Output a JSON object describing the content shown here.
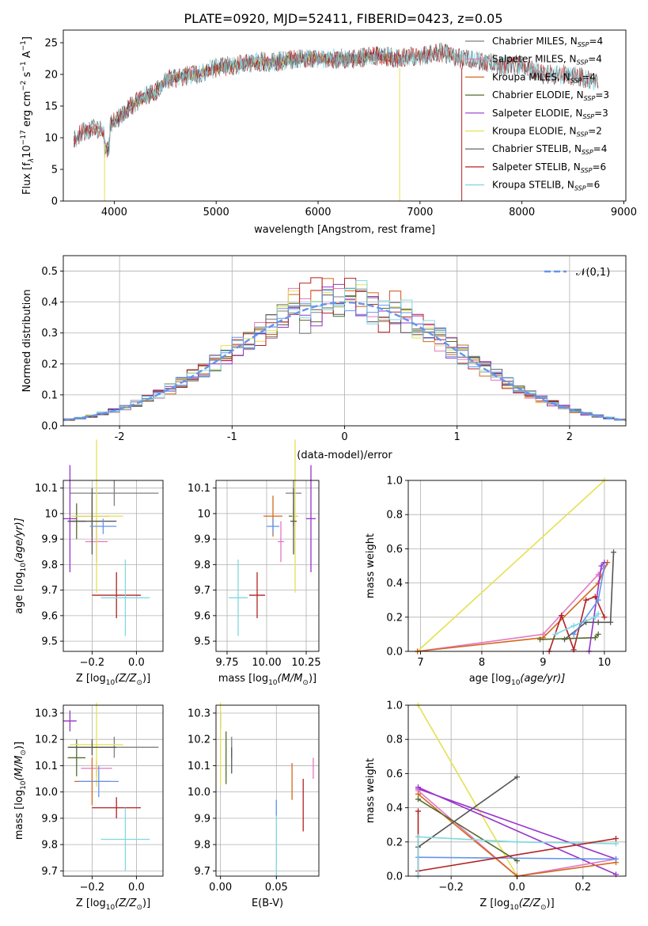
{
  "figure": {
    "title": "PLATE=0920, MJD=52411, FIBERID=0423, z=0.05"
  },
  "colors": {
    "chabrier_miles": "#7f7f7f",
    "salpeter_miles": "#e377c2",
    "kroupa_miles": "#d2691e",
    "chabrier_elodie": "#556b2f",
    "salpeter_elodie": "#9932cc",
    "kroupa_elodie": "#e6e050",
    "chabrier_stelib": "#555555",
    "salpeter_stelib": "#b22222",
    "kroupa_stelib": "#80d8e0",
    "normal": "#6495ed",
    "extra_blue": "#6495ed"
  },
  "chart_data": [
    {
      "id": "spectrum",
      "type": "line",
      "xlabel": "wavelength [Angstrom, rest frame]",
      "ylabel_parts": [
        "Flux [f",
        "λ",
        "10",
        "−17",
        " erg cm",
        "−2",
        " s",
        "−1",
        " A",
        "−1",
        "]"
      ],
      "xlim": [
        3500,
        9020
      ],
      "ylim": [
        0,
        27
      ],
      "xticks": [
        4000,
        5000,
        6000,
        7000,
        8000,
        9000
      ],
      "yticks": [
        0,
        5,
        10,
        15,
        20,
        25
      ],
      "grid": false,
      "legend_position": "top-right",
      "legend": [
        {
          "label": "Chabrier MILES, N",
          "sub": "SSP",
          "suffix": "=4",
          "color_key": "chabrier_miles"
        },
        {
          "label": "Salpeter MILES, N",
          "sub": "SSP",
          "suffix": "=4",
          "color_key": "salpeter_miles"
        },
        {
          "label": "Kroupa MILES, N",
          "sub": "SSP",
          "suffix": "=4",
          "color_key": "kroupa_miles"
        },
        {
          "label": "Chabrier ELODIE, N",
          "sub": "SSP",
          "suffix": "=3",
          "color_key": "chabrier_elodie"
        },
        {
          "label": "Salpeter ELODIE, N",
          "sub": "SSP",
          "suffix": "=3",
          "color_key": "salpeter_elodie"
        },
        {
          "label": "Kroupa ELODIE, N",
          "sub": "SSP",
          "suffix": "=2",
          "color_key": "kroupa_elodie"
        },
        {
          "label": "Chabrier STELIB, N",
          "sub": "SSP",
          "suffix": "=4",
          "color_key": "chabrier_stelib"
        },
        {
          "label": "Salpeter STELIB, N",
          "sub": "SSP",
          "suffix": "=6",
          "color_key": "salpeter_stelib"
        },
        {
          "label": "Kroupa STELIB, N",
          "sub": "SSP",
          "suffix": "=6",
          "color_key": "kroupa_stelib"
        }
      ],
      "continuum": {
        "wavelength": [
          3600,
          3700,
          3800,
          3900,
          4000,
          4100,
          4200,
          4300,
          4400,
          4500,
          4600,
          4800,
          5000,
          5200,
          5400,
          5600,
          5800,
          6000,
          6200,
          6400,
          6600,
          6800,
          7000,
          7200,
          7400,
          7600,
          7800,
          8000,
          8200,
          8400,
          8600,
          8700
        ],
        "flux": [
          9.5,
          11,
          11.5,
          11,
          12.5,
          14,
          15.5,
          16.5,
          17,
          19,
          19.5,
          20,
          21,
          21.5,
          22,
          22,
          22.5,
          22.5,
          22.5,
          22.5,
          23,
          22.5,
          23,
          23.5,
          22.5,
          22,
          21.5,
          21.5,
          20,
          20,
          19.5,
          19
        ]
      },
      "series_ranges": [
        {
          "color_key": "chabrier_miles",
          "range": [
            3600,
            7400
          ]
        },
        {
          "color_key": "salpeter_miles",
          "range": [
            3600,
            7400
          ]
        },
        {
          "color_key": "kroupa_miles",
          "range": [
            3600,
            7400
          ]
        },
        {
          "color_key": "chabrier_elodie",
          "range": [
            3900,
            6800
          ]
        },
        {
          "color_key": "salpeter_elodie",
          "range": [
            3900,
            6800
          ]
        },
        {
          "color_key": "kroupa_elodie",
          "range": [
            3900,
            6800
          ]
        },
        {
          "color_key": "chabrier_stelib",
          "range": [
            3600,
            8750
          ]
        },
        {
          "color_key": "salpeter_stelib",
          "range": [
            3600,
            8750
          ]
        },
        {
          "color_key": "kroupa_stelib",
          "range": [
            3600,
            8750
          ]
        }
      ]
    },
    {
      "id": "residuals",
      "type": "histogram",
      "xlabel": "(data-model)/error",
      "ylabel": "Normed distribution",
      "xlim": [
        -2.5,
        2.5
      ],
      "ylim": [
        0,
        0.55
      ],
      "xticks": [
        -2,
        -1,
        0,
        1,
        2
      ],
      "yticks": [
        0.0,
        0.1,
        0.2,
        0.3,
        0.4,
        0.5
      ],
      "grid": true,
      "legend_position": "top-right",
      "legend_label": "𝒩(0,1)",
      "bin_edges_start": -2.5,
      "bin_width": 0.1,
      "bins": 50
    },
    {
      "id": "age-vs-z",
      "type": "errorbar",
      "xlabel": "Z [log",
      "xlabel_sub": "10",
      "xlabel_rest": "(Z/Z",
      "xlabel_sun": "⊙",
      "xlabel_end": ")]",
      "ylabel": "age  [log",
      "ylabel_sub": "10",
      "ylabel_rest": "(age/yr)]",
      "xlim": [
        -0.33,
        0.12
      ],
      "ylim": [
        9.46,
        10.13
      ],
      "xticks": [
        -0.2,
        0.0
      ],
      "xtick_labels": [
        "−0.2",
        "0.0"
      ],
      "yticks": [
        9.5,
        9.6,
        9.7,
        9.8,
        9.9,
        10.0,
        10.1
      ],
      "grid": true,
      "points": [
        {
          "color_key": "chabrier_miles",
          "x": -0.1,
          "xerr": 0.2,
          "y": 10.08,
          "yerr": 0.05
        },
        {
          "color_key": "salpeter_miles",
          "x": -0.18,
          "xerr": 0.05,
          "y": 9.89,
          "yerr": 0.08
        },
        {
          "color_key": "kroupa_miles",
          "x": -0.2,
          "xerr": 0.08,
          "y": 9.99,
          "yerr": 0.08
        },
        {
          "color_key": "chabrier_elodie",
          "x": -0.27,
          "xerr": 0.04,
          "y": 9.97,
          "yerr": 0.07
        },
        {
          "color_key": "salpeter_elodie",
          "x": -0.3,
          "xerr": 0.03,
          "y": 9.98,
          "yerr": 0.21
        },
        {
          "color_key": "kroupa_elodie",
          "x": -0.18,
          "xerr": 0.12,
          "y": 9.99,
          "yerr": 0.3
        },
        {
          "color_key": "chabrier_stelib",
          "x": -0.2,
          "xerr": 0.11,
          "y": 9.97,
          "yerr": 0.13
        },
        {
          "color_key": "salpeter_stelib",
          "x": -0.09,
          "xerr": 0.11,
          "y": 9.68,
          "yerr": 0.09
        },
        {
          "color_key": "kroupa_stelib",
          "x": -0.05,
          "xerr": 0.11,
          "y": 9.67,
          "yerr": 0.15
        },
        {
          "color_key": "extra_blue",
          "x": -0.15,
          "xerr": 0.06,
          "y": 9.95,
          "yerr": 0.03
        }
      ]
    },
    {
      "id": "age-vs-mass",
      "type": "errorbar",
      "xlabel": "mass [log",
      "xlabel_sub": "10",
      "xlabel_rest": "(M/M",
      "xlabel_sun": "⊙",
      "xlabel_end": ")]",
      "xlim": [
        9.68,
        10.33
      ],
      "ylim": [
        9.46,
        10.13
      ],
      "xticks": [
        9.75,
        10.0,
        10.25
      ],
      "xtick_labels": [
        "9.75",
        "10.00",
        "10.25"
      ],
      "yticks": [
        9.5,
        9.6,
        9.7,
        9.8,
        9.9,
        10.0,
        10.1
      ],
      "grid": true,
      "points": [
        {
          "color_key": "chabrier_miles",
          "x": 10.17,
          "xerr": 0.05,
          "y": 10.08,
          "yerr": 0.05
        },
        {
          "color_key": "salpeter_miles",
          "x": 10.09,
          "xerr": 0.02,
          "y": 9.89,
          "yerr": 0.08
        },
        {
          "color_key": "kroupa_miles",
          "x": 10.04,
          "xerr": 0.06,
          "y": 9.99,
          "yerr": 0.08
        },
        {
          "color_key": "chabrier_elodie",
          "x": 10.17,
          "xerr": 0.03,
          "y": 9.99,
          "yerr": 0.04
        },
        {
          "color_key": "salpeter_elodie",
          "x": 10.28,
          "xerr": 0.03,
          "y": 9.98,
          "yerr": 0.21
        },
        {
          "color_key": "kroupa_elodie",
          "x": 10.18,
          "xerr": 0.02,
          "y": 9.99,
          "yerr": 0.3
        },
        {
          "color_key": "chabrier_stelib",
          "x": 10.17,
          "xerr": 0.02,
          "y": 9.97,
          "yerr": 0.13
        },
        {
          "color_key": "salpeter_stelib",
          "x": 9.94,
          "xerr": 0.05,
          "y": 9.68,
          "yerr": 0.09
        },
        {
          "color_key": "kroupa_stelib",
          "x": 9.82,
          "xerr": 0.06,
          "y": 9.67,
          "yerr": 0.15
        },
        {
          "color_key": "extra_blue",
          "x": 10.04,
          "xerr": 0.04,
          "y": 9.95,
          "yerr": 0.03
        }
      ]
    },
    {
      "id": "weight-vs-age",
      "type": "line",
      "xlabel": "age  [log",
      "xlabel_sub": "10",
      "xlabel_rest": "(age/yr)]",
      "ylabel": "mass weight",
      "xlim": [
        6.8,
        10.35
      ],
      "ylim": [
        0,
        1
      ],
      "xticks": [
        7,
        8,
        9,
        10
      ],
      "yticks": [
        0.0,
        0.2,
        0.4,
        0.6,
        0.8,
        1.0
      ],
      "grid": true,
      "series": [
        {
          "color_key": "kroupa_elodie",
          "x": [
            6.95,
            10.0
          ],
          "y": [
            0.0,
            1.0
          ]
        },
        {
          "color_key": "salpeter_miles",
          "x": [
            6.95,
            9.0,
            9.9,
            10.0
          ],
          "y": [
            0.0,
            0.1,
            0.45,
            0.5
          ]
        },
        {
          "color_key": "kroupa_miles",
          "x": [
            6.95,
            9.0,
            9.9,
            10.05
          ],
          "y": [
            0.0,
            0.08,
            0.4,
            0.52
          ]
        },
        {
          "color_key": "salpeter_elodie",
          "x": [
            9.75,
            9.95,
            10.0
          ],
          "y": [
            0.0,
            0.5,
            0.52
          ]
        },
        {
          "color_key": "salpeter_stelib",
          "x": [
            9.1,
            9.3,
            9.5,
            9.7,
            9.85,
            10.0
          ],
          "y": [
            0.0,
            0.21,
            0.01,
            0.3,
            0.32,
            0.2
          ]
        },
        {
          "color_key": "chabrier_stelib",
          "x": [
            9.35,
            9.7,
            9.9,
            10.1,
            10.15
          ],
          "y": [
            0.07,
            0.17,
            0.17,
            0.17,
            0.58
          ]
        },
        {
          "color_key": "kroupa_stelib",
          "x": [
            9.2,
            9.5,
            9.85,
            9.9
          ],
          "y": [
            0.1,
            0.15,
            0.2,
            0.22
          ]
        },
        {
          "color_key": "extra_blue",
          "x": [
            9.5,
            9.9,
            10.0
          ],
          "y": [
            0.1,
            0.3,
            0.5
          ]
        },
        {
          "color_key": "chabrier_elodie",
          "x": [
            8.95,
            9.85,
            9.9
          ],
          "y": [
            0.07,
            0.08,
            0.1
          ]
        }
      ]
    },
    {
      "id": "mass-vs-z",
      "type": "errorbar",
      "xlabel": "Z [log",
      "xlabel_sub": "10",
      "xlabel_rest": "(Z/Z",
      "xlabel_sun": "⊙",
      "xlabel_end": ")]",
      "ylabel": "mass [log",
      "ylabel_sub": "10",
      "ylabel_rest": "(M/M",
      "ylabel_sun": "⊙",
      "ylabel_end": ")]",
      "xlim": [
        -0.33,
        0.12
      ],
      "ylim": [
        9.68,
        10.33
      ],
      "xticks": [
        -0.2,
        0.0
      ],
      "xtick_labels": [
        "−0.2",
        "0.0"
      ],
      "yticks": [
        9.7,
        9.8,
        9.9,
        10.0,
        10.1,
        10.2,
        10.3
      ],
      "ytick_labels": [
        "9.7",
        "9.8",
        "9.9",
        "10.0",
        "10.1",
        "10.2",
        "10.3"
      ],
      "grid": true,
      "points": [
        {
          "color_key": "chabrier_miles",
          "x": -0.1,
          "xerr": 0.2,
          "y": 10.17,
          "yerr": 0.04
        },
        {
          "color_key": "salpeter_miles",
          "x": -0.18,
          "xerr": 0.07,
          "y": 10.09,
          "yerr": 0.03
        },
        {
          "color_key": "kroupa_miles",
          "x": -0.2,
          "xerr": 0.08,
          "y": 10.04,
          "yerr": 0.09
        },
        {
          "color_key": "chabrier_elodie",
          "x": -0.27,
          "xerr": 0.04,
          "y": 10.13,
          "yerr": 0.07
        },
        {
          "color_key": "salpeter_elodie",
          "x": -0.3,
          "xerr": 0.03,
          "y": 10.27,
          "yerr": 0.04
        },
        {
          "color_key": "kroupa_elodie",
          "x": -0.18,
          "xerr": 0.12,
          "y": 10.18,
          "yerr": 0.16
        },
        {
          "color_key": "chabrier_stelib",
          "x": -0.2,
          "xerr": 0.11,
          "y": 10.17,
          "yerr": 0.03
        },
        {
          "color_key": "salpeter_stelib",
          "x": -0.09,
          "xerr": 0.11,
          "y": 9.94,
          "yerr": 0.04
        },
        {
          "color_key": "kroupa_stelib",
          "x": -0.05,
          "xerr": 0.11,
          "y": 9.82,
          "yerr": 0.12
        },
        {
          "color_key": "extra_blue",
          "x": -0.17,
          "xerr": 0.09,
          "y": 10.04,
          "yerr": 0.06
        }
      ]
    },
    {
      "id": "mass-vs-ebv",
      "type": "errorbar",
      "xlabel": "E(B-V)",
      "xlim": [
        -0.004,
        0.088
      ],
      "ylim": [
        9.68,
        10.33
      ],
      "xticks": [
        0.0,
        0.05
      ],
      "xtick_labels": [
        "0.00",
        "0.05"
      ],
      "yticks": [
        9.7,
        9.8,
        9.9,
        10.0,
        10.1,
        10.2,
        10.3
      ],
      "ytick_labels": [
        "9.7",
        "9.8",
        "9.9",
        "10.0",
        "10.1",
        "10.2",
        "10.3"
      ],
      "grid": true,
      "points": [
        {
          "color_key": "chabrier_miles",
          "x": 0.01,
          "xerr": 0.0,
          "y": 10.17,
          "yerr": 0.04
        },
        {
          "color_key": "salpeter_miles",
          "x": 0.083,
          "xerr": 0.0,
          "y": 10.09,
          "yerr": 0.04
        },
        {
          "color_key": "kroupa_miles",
          "x": 0.064,
          "xerr": 0.0,
          "y": 10.04,
          "yerr": 0.07
        },
        {
          "color_key": "chabrier_elodie",
          "x": 0.005,
          "xerr": 0.0,
          "y": 10.13,
          "yerr": 0.1
        },
        {
          "color_key": "salpeter_elodie",
          "x": 0.0,
          "xerr": 0.0,
          "y": 10.27,
          "yerr": 0.03
        },
        {
          "color_key": "kroupa_elodie",
          "x": 0.0,
          "xerr": 0.0,
          "y": 10.18,
          "yerr": 0.16
        },
        {
          "color_key": "chabrier_stelib",
          "x": 0.01,
          "xerr": 0.0,
          "y": 10.12,
          "yerr": 0.05
        },
        {
          "color_key": "salpeter_stelib",
          "x": 0.074,
          "xerr": 0.0,
          "y": 9.95,
          "yerr": 0.1
        },
        {
          "color_key": "kroupa_stelib",
          "x": 0.05,
          "xerr": 0.0,
          "y": 9.82,
          "yerr": 0.15
        },
        {
          "color_key": "extra_blue",
          "x": 0.05,
          "xerr": 0.0,
          "y": 9.94,
          "yerr": 0.03
        }
      ]
    },
    {
      "id": "weight-vs-z",
      "type": "line",
      "xlabel": "Z [log",
      "xlabel_sub": "10",
      "xlabel_rest": "(Z/Z",
      "xlabel_sun": "⊙",
      "xlabel_end": ")]",
      "ylabel": "mass weight",
      "xlim": [
        -0.33,
        0.33
      ],
      "ylim": [
        0,
        1
      ],
      "xticks": [
        -0.2,
        0.0,
        0.2
      ],
      "xtick_labels": [
        "−0.2",
        "0.0",
        "0.2"
      ],
      "yticks": [
        0.0,
        0.2,
        0.4,
        0.6,
        0.8,
        1.0
      ],
      "grid": true,
      "series": [
        {
          "color_key": "kroupa_elodie",
          "x": [
            -0.3,
            0.0
          ],
          "y": [
            1.0,
            0.0
          ]
        },
        {
          "color_key": "salpeter_elodie",
          "x": [
            -0.3,
            0.3
          ],
          "y": [
            0.52,
            0.01
          ]
        },
        {
          "color_key": "salpeter_elodie",
          "x": [
            -0.3,
            0.3
          ],
          "y": [
            0.51,
            0.1
          ]
        },
        {
          "color_key": "salpeter_miles",
          "x": [
            -0.3,
            0.0,
            0.3
          ],
          "y": [
            0.5,
            0.0,
            0.1
          ]
        },
        {
          "color_key": "kroupa_miles",
          "x": [
            -0.3,
            0.0,
            0.3
          ],
          "y": [
            0.48,
            0.0,
            0.08
          ]
        },
        {
          "color_key": "chabrier_stelib",
          "x": [
            -0.3,
            0.0
          ],
          "y": [
            0.17,
            0.58
          ]
        },
        {
          "color_key": "chabrier_elodie",
          "x": [
            -0.3,
            0.0
          ],
          "y": [
            0.45,
            0.09
          ]
        },
        {
          "color_key": "kroupa_stelib",
          "x": [
            -0.3,
            0.0,
            0.3
          ],
          "y": [
            0.23,
            0.2,
            0.19
          ]
        },
        {
          "color_key": "extra_blue",
          "x": [
            -0.3,
            0.3
          ],
          "y": [
            0.11,
            0.1
          ]
        },
        {
          "color_key": "salpeter_stelib",
          "x": [
            -0.3,
            0.3
          ],
          "y": [
            0.03,
            0.22
          ]
        },
        {
          "color_key": "salpeter_stelib",
          "x": [
            -0.3,
            -0.3
          ],
          "y": [
            0.0,
            0.38
          ]
        },
        {
          "color_key": "kroupa_stelib",
          "x": [
            -0.3,
            -0.3
          ],
          "y": [
            0.0,
            0.23
          ]
        }
      ]
    }
  ]
}
